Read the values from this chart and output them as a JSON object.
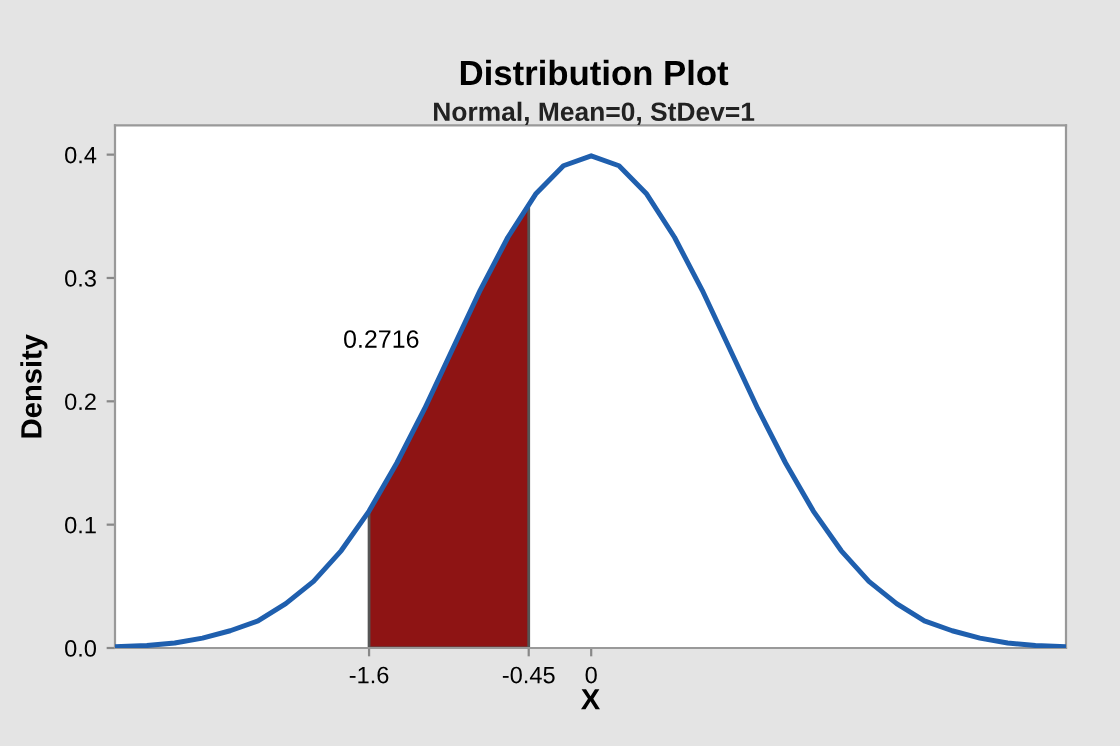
{
  "chart_data": {
    "type": "line",
    "title": "Distribution Plot",
    "subtitle": "Normal, Mean=0, StDev=1",
    "xlabel": "X",
    "ylabel": "Density",
    "series": [
      {
        "color": "#1f5fae",
        "x": [
          -3.43,
          -3.2,
          -3.0,
          -2.8,
          -2.6,
          -2.4,
          -2.2,
          -2.0,
          -1.8,
          -1.6,
          -1.4,
          -1.2,
          -1.0,
          -0.8,
          -0.6,
          -0.4,
          -0.2,
          0,
          0.2,
          0.4,
          0.6,
          0.8,
          1.0,
          1.2,
          1.4,
          1.6,
          1.8,
          2.0,
          2.2,
          2.4,
          2.6,
          2.8,
          3.0,
          3.2,
          3.42
        ],
        "values": [
          0.001,
          0.002,
          0.004,
          0.008,
          0.014,
          0.022,
          0.036,
          0.054,
          0.079,
          0.111,
          0.15,
          0.194,
          0.242,
          0.29,
          0.333,
          0.368,
          0.391,
          0.399,
          0.391,
          0.368,
          0.333,
          0.29,
          0.242,
          0.194,
          0.15,
          0.111,
          0.079,
          0.054,
          0.036,
          0.022,
          0.014,
          0.008,
          0.004,
          0.002,
          0.001
        ]
      },
      {
        "type": "area",
        "color": "#8e1414",
        "x": [
          -1.6,
          -1.4,
          -1.2,
          -1.0,
          -0.8,
          -0.6,
          -0.45
        ],
        "values": [
          0.111,
          0.15,
          0.194,
          0.242,
          0.29,
          0.333,
          0.36
        ]
      }
    ],
    "xlim": [
      -3.43,
      3.42
    ],
    "xticks": [
      -1.6,
      -0.45,
      0
    ],
    "ylim": [
      0,
      0.4237
    ],
    "yticks": [
      {
        "value": 0,
        "label": "0.0"
      },
      0.1,
      0.2,
      0.3,
      0.4
    ],
    "annotations": [
      "0.2716"
    ],
    "grid": false,
    "legend": false
  }
}
